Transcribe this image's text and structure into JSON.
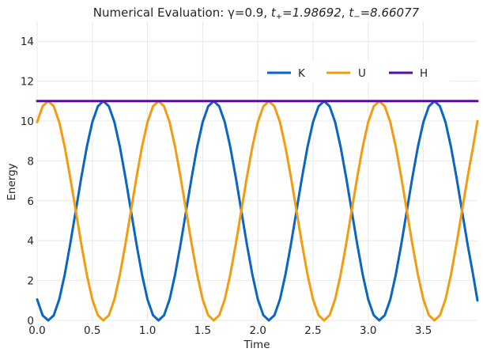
{
  "chart_data": {
    "type": "line",
    "title": "Numerical Evaluation: γ=0.9, t+=1.98692, t−=8.66077",
    "title_parts": {
      "prefix": "Numerical Evaluation: γ=0.9, ",
      "t_plus_var": "t",
      "t_plus_sub": "+",
      "t_plus_value": "=1.98692",
      "separator": ", ",
      "t_minus_var": "t",
      "t_minus_sub": "−",
      "t_minus_value": "=8.66077"
    },
    "xlabel": "Time",
    "ylabel": "Energy",
    "xlim": [
      0,
      3.99
    ],
    "ylim": [
      0,
      15
    ],
    "xticks": [
      "0.0",
      "0.5",
      "1.0",
      "1.5",
      "2.0",
      "2.5",
      "3.0",
      "3.5"
    ],
    "xtick_values": [
      0,
      0.5,
      1.0,
      1.5,
      2.0,
      2.5,
      3.0,
      3.5
    ],
    "yticks": [
      "0",
      "2",
      "4",
      "6",
      "8",
      "10",
      "12",
      "14"
    ],
    "ytick_values": [
      0,
      2,
      4,
      6,
      8,
      10,
      12,
      14
    ],
    "grid": true,
    "legend_placement": "upper-right",
    "series": [
      {
        "name": "K",
        "color": "#0a66c2",
        "x": [
          0.0,
          0.05,
          0.1,
          0.15,
          0.2,
          0.25,
          0.3,
          0.35,
          0.4,
          0.45,
          0.5,
          0.55,
          0.6,
          0.65,
          0.7,
          0.75,
          0.8,
          0.85,
          0.9,
          0.95,
          1.0,
          1.05,
          1.1,
          1.15,
          1.2,
          1.25,
          1.3,
          1.35,
          1.4,
          1.45,
          1.5,
          1.55,
          1.6,
          1.65,
          1.7,
          1.75,
          1.8,
          1.85,
          1.9,
          1.95,
          2.0,
          2.05,
          2.1,
          2.15,
          2.2,
          2.25,
          2.3,
          2.35,
          2.4,
          2.45,
          2.5,
          2.55,
          2.6,
          2.65,
          2.7,
          2.75,
          2.8,
          2.85,
          2.9,
          2.95,
          3.0,
          3.05,
          3.1,
          3.15,
          3.2,
          3.25,
          3.3,
          3.35,
          3.4,
          3.45,
          3.5,
          3.55,
          3.6,
          3.65,
          3.7,
          3.75,
          3.8,
          3.85,
          3.9,
          3.95,
          3.99
        ],
        "y": [
          1.05,
          0.25,
          0.0,
          0.25,
          1.05,
          2.3,
          3.85,
          5.5,
          7.17,
          8.7,
          9.95,
          10.74,
          11.0,
          10.74,
          9.95,
          8.7,
          7.17,
          5.5,
          3.83,
          2.3,
          1.05,
          0.26,
          0.0,
          0.26,
          1.05,
          2.3,
          3.83,
          5.5,
          7.17,
          8.7,
          9.95,
          10.74,
          11.0,
          10.74,
          9.95,
          8.7,
          7.17,
          5.5,
          3.83,
          2.3,
          1.05,
          0.26,
          0.0,
          0.26,
          1.05,
          2.3,
          3.83,
          5.5,
          7.17,
          8.7,
          9.95,
          10.74,
          11.0,
          10.74,
          9.95,
          8.7,
          7.17,
          5.5,
          3.83,
          2.3,
          1.05,
          0.26,
          0.0,
          0.26,
          1.05,
          2.3,
          3.83,
          5.5,
          7.17,
          8.7,
          9.95,
          10.74,
          11.0,
          10.74,
          9.95,
          8.7,
          7.17,
          5.5,
          3.83,
          2.3,
          1.0
        ]
      },
      {
        "name": "U",
        "color": "#f39c12",
        "x": [
          0.0,
          0.05,
          0.1,
          0.15,
          0.2,
          0.25,
          0.3,
          0.35,
          0.4,
          0.45,
          0.5,
          0.55,
          0.6,
          0.65,
          0.7,
          0.75,
          0.8,
          0.85,
          0.9,
          0.95,
          1.0,
          1.05,
          1.1,
          1.15,
          1.2,
          1.25,
          1.3,
          1.35,
          1.4,
          1.45,
          1.5,
          1.55,
          1.6,
          1.65,
          1.7,
          1.75,
          1.8,
          1.85,
          1.9,
          1.95,
          2.0,
          2.05,
          2.1,
          2.15,
          2.2,
          2.25,
          2.3,
          2.35,
          2.4,
          2.45,
          2.5,
          2.55,
          2.6,
          2.65,
          2.7,
          2.75,
          2.8,
          2.85,
          2.9,
          2.95,
          3.0,
          3.05,
          3.1,
          3.15,
          3.2,
          3.25,
          3.3,
          3.35,
          3.4,
          3.45,
          3.5,
          3.55,
          3.6,
          3.65,
          3.7,
          3.75,
          3.8,
          3.85,
          3.9,
          3.95,
          3.99
        ],
        "y": [
          9.95,
          10.75,
          11.0,
          10.75,
          9.95,
          8.7,
          7.15,
          5.5,
          3.83,
          2.3,
          1.05,
          0.26,
          0.0,
          0.26,
          1.05,
          2.3,
          3.83,
          5.5,
          7.17,
          8.7,
          9.95,
          10.74,
          11.0,
          10.74,
          9.95,
          8.7,
          7.17,
          5.5,
          3.83,
          2.3,
          1.05,
          0.26,
          0.0,
          0.26,
          1.05,
          2.3,
          3.83,
          5.5,
          7.17,
          8.7,
          9.95,
          10.74,
          11.0,
          10.74,
          9.95,
          8.7,
          7.17,
          5.5,
          3.83,
          2.3,
          1.05,
          0.26,
          0.0,
          0.26,
          1.05,
          2.3,
          3.83,
          5.5,
          7.17,
          8.7,
          9.95,
          10.74,
          11.0,
          10.74,
          9.95,
          8.7,
          7.17,
          5.5,
          3.83,
          2.3,
          1.05,
          0.26,
          0.0,
          0.26,
          1.05,
          2.3,
          3.83,
          5.5,
          7.17,
          8.7,
          10.0
        ]
      },
      {
        "name": "H",
        "color": "#5b0aa6",
        "x": [
          0.0,
          3.99
        ],
        "y": [
          11.0,
          11.0
        ]
      }
    ]
  }
}
